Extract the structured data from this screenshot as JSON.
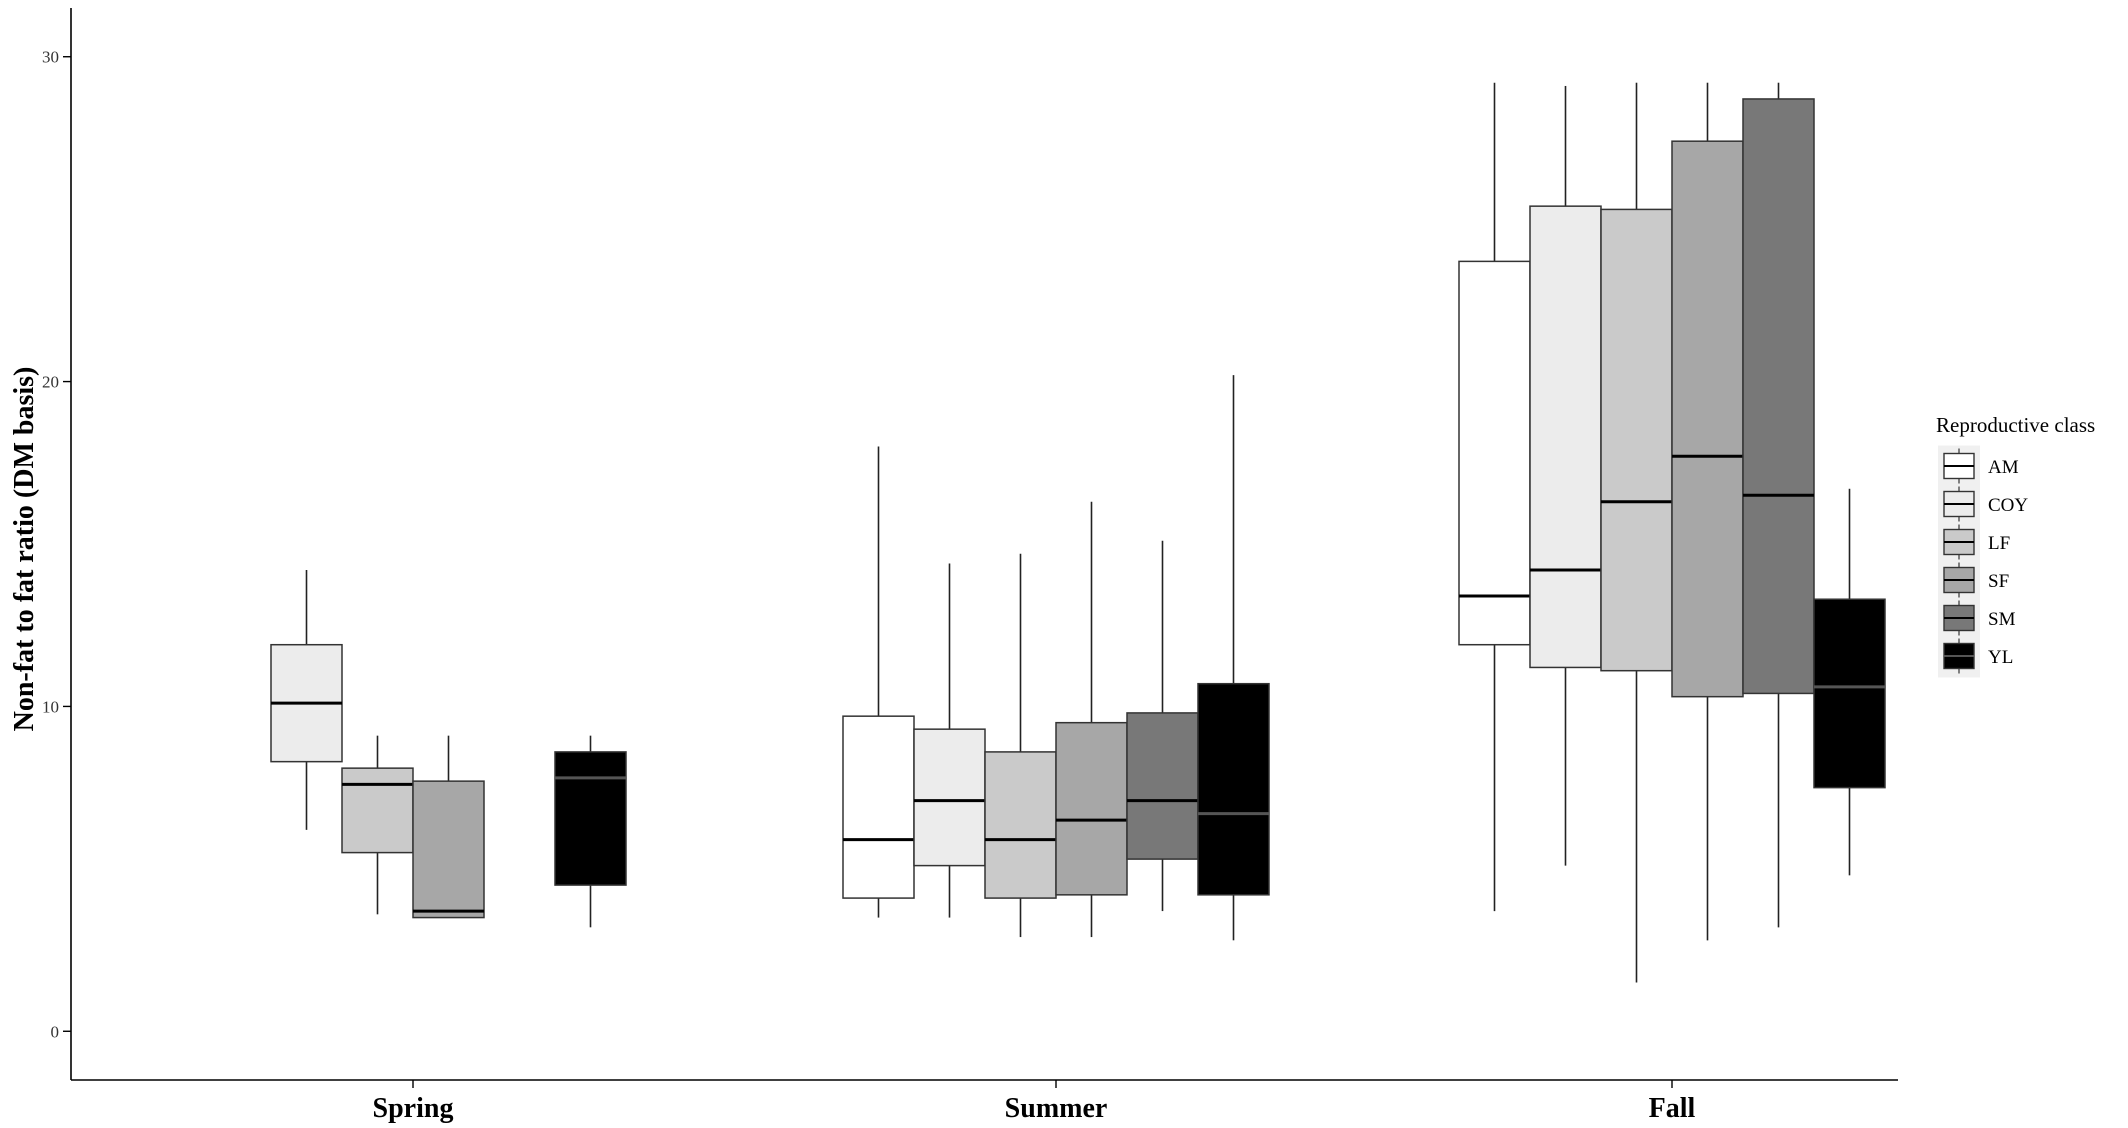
{
  "chart_data": {
    "type": "box",
    "title": "",
    "xlabel": "",
    "ylabel": "Non-fat to fat ratio (DM basis)",
    "ylim": [
      -1.5,
      31.5
    ],
    "yticks": [
      0,
      10,
      20,
      30
    ],
    "grid": false,
    "legend_position": "right",
    "legend_title": "Reproductive class",
    "categories": [
      "Spring",
      "Summer",
      "Fall"
    ],
    "series": [
      {
        "name": "AM",
        "fill": "#ffffff",
        "median_color": "#000000",
        "boxes": [
          null,
          {
            "whisker_low": 3.5,
            "q1": 4.1,
            "median": 5.9,
            "q3": 9.7,
            "whisker_high": 18.0
          },
          {
            "whisker_low": 3.7,
            "q1": 11.9,
            "median": 13.4,
            "q3": 23.7,
            "whisker_high": 29.2
          }
        ]
      },
      {
        "name": "COY",
        "fill": "#ececec",
        "median_color": "#000000",
        "boxes": [
          {
            "whisker_low": 6.2,
            "q1": 8.3,
            "median": 10.1,
            "q3": 11.9,
            "whisker_high": 14.2
          },
          {
            "whisker_low": 3.5,
            "q1": 5.1,
            "median": 7.1,
            "q3": 9.3,
            "whisker_high": 14.4
          },
          {
            "whisker_low": 5.1,
            "q1": 11.2,
            "median": 14.2,
            "q3": 25.4,
            "whisker_high": 29.1
          }
        ]
      },
      {
        "name": "LF",
        "fill": "#cacaca",
        "median_color": "#000000",
        "boxes": [
          {
            "whisker_low": 3.6,
            "q1": 5.5,
            "median": 7.6,
            "q3": 8.1,
            "whisker_high": 9.1
          },
          {
            "whisker_low": 2.9,
            "q1": 4.1,
            "median": 5.9,
            "q3": 8.6,
            "whisker_high": 14.7
          },
          {
            "whisker_low": 1.5,
            "q1": 11.1,
            "median": 16.3,
            "q3": 25.3,
            "whisker_high": 29.2
          }
        ]
      },
      {
        "name": "SF",
        "fill": "#a7a7a7",
        "median_color": "#000000",
        "boxes": [
          {
            "whisker_low": 3.5,
            "q1": 3.5,
            "median": 3.7,
            "q3": 7.7,
            "whisker_high": 9.1
          },
          {
            "whisker_low": 2.9,
            "q1": 4.2,
            "median": 6.5,
            "q3": 9.5,
            "whisker_high": 16.3
          },
          {
            "whisker_low": 2.8,
            "q1": 10.3,
            "median": 17.7,
            "q3": 27.4,
            "whisker_high": 29.2
          }
        ]
      },
      {
        "name": "SM",
        "fill": "#787878",
        "median_color": "#000000",
        "boxes": [
          null,
          {
            "whisker_low": 3.7,
            "q1": 5.3,
            "median": 7.1,
            "q3": 9.8,
            "whisker_high": 15.1
          },
          {
            "whisker_low": 3.2,
            "q1": 10.4,
            "median": 16.5,
            "q3": 28.7,
            "whisker_high": 29.2
          }
        ]
      },
      {
        "name": "YL",
        "fill": "#000000",
        "median_color": "#555555",
        "boxes": [
          {
            "whisker_low": 3.2,
            "q1": 4.5,
            "median": 7.8,
            "q3": 8.6,
            "whisker_high": 9.1
          },
          {
            "whisker_low": 2.8,
            "q1": 4.2,
            "median": 6.7,
            "q3": 10.7,
            "whisker_high": 20.2
          },
          {
            "whisker_low": 4.8,
            "q1": 7.5,
            "median": 10.6,
            "q3": 13.3,
            "whisker_high": 16.7
          }
        ]
      }
    ]
  }
}
